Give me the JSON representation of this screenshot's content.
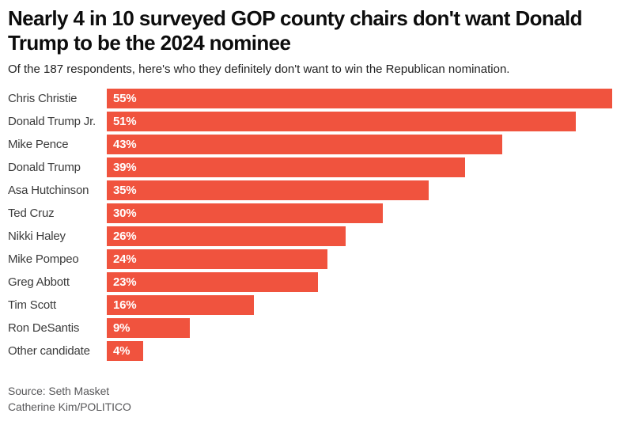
{
  "header": {
    "title": "Nearly 4 in 10 surveyed GOP county chairs don't want Donald Trump to be the 2024 nominee",
    "subtitle": "Of the 187 respondents, here's who they definitely don't want to win the Republican nomination."
  },
  "chart_data": {
    "type": "bar",
    "orientation": "horizontal",
    "title": "Nearly 4 in 10 surveyed GOP county chairs don't want Donald Trump to be the 2024 nominee",
    "subtitle": "Of the 187 respondents, here's who they definitely don't want to win the Republican nomination.",
    "categories": [
      "Chris Christie",
      "Donald Trump Jr.",
      "Mike Pence",
      "Donald Trump",
      "Asa Hutchinson",
      "Ted Cruz",
      "Nikki Haley",
      "Mike Pompeo",
      "Greg Abbott",
      "Tim Scott",
      "Ron DeSantis",
      "Other candidate"
    ],
    "values": [
      55,
      51,
      43,
      39,
      35,
      30,
      26,
      24,
      23,
      16,
      9,
      4
    ],
    "value_suffix": "%",
    "xlim": [
      0,
      55
    ],
    "grid": false,
    "legend": "none",
    "bar_color": "#F0533E",
    "value_label_color": "#FFFFFF",
    "category_label_color": "#3B3B3B"
  },
  "footer": {
    "source": "Source: Seth Masket",
    "credit": "Catherine Kim/POLITICO"
  }
}
